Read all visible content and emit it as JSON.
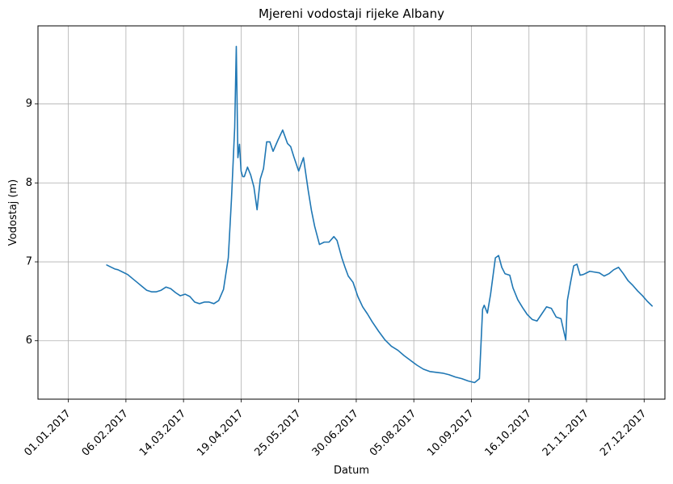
{
  "chart_data": {
    "type": "line",
    "title": "Mjereni vodostaji rijeke Albany",
    "xlabel": "Datum",
    "ylabel": "Vodostaj (m)",
    "x_ticks": [
      "01.01.2017",
      "06.02.2017",
      "14.03.2017",
      "19.04.2017",
      "25.05.2017",
      "30.06.2017",
      "05.08.2017",
      "10.09.2017",
      "16.10.2017",
      "21.11.2017",
      "27.12.2017"
    ],
    "y_ticks": [
      6,
      7,
      8,
      9
    ],
    "xlim": [
      "2016-12-13",
      "2018-01-09"
    ],
    "ylim": [
      5.26,
      9.99
    ],
    "grid": true,
    "line_color": "#1f77b4",
    "series": [
      {
        "x": [
          "2017-01-25",
          "2017-01-27",
          "2017-01-30",
          "2017-02-01",
          "2017-02-04",
          "2017-02-07",
          "2017-02-10",
          "2017-02-13",
          "2017-02-16",
          "2017-02-19",
          "2017-02-22",
          "2017-02-25",
          "2017-02-28",
          "2017-03-03",
          "2017-03-06",
          "2017-03-09",
          "2017-03-12",
          "2017-03-15",
          "2017-03-18",
          "2017-03-21",
          "2017-03-24",
          "2017-03-27",
          "2017-03-30",
          "2017-04-02",
          "2017-04-05",
          "2017-04-08",
          "2017-04-11",
          "2017-04-13",
          "2017-04-15",
          "2017-04-16",
          "2017-04-17",
          "2017-04-18",
          "2017-04-19",
          "2017-04-20",
          "2017-04-21",
          "2017-04-23",
          "2017-04-25",
          "2017-04-27",
          "2017-04-29",
          "2017-05-01",
          "2017-05-03",
          "2017-05-05",
          "2017-05-07",
          "2017-05-09",
          "2017-05-12",
          "2017-05-15",
          "2017-05-18",
          "2017-05-20",
          "2017-05-22",
          "2017-05-25",
          "2017-05-28",
          "2017-05-31",
          "2017-06-02",
          "2017-06-04",
          "2017-06-07",
          "2017-06-10",
          "2017-06-13",
          "2017-06-16",
          "2017-06-18",
          "2017-06-21",
          "2017-06-23",
          "2017-06-25",
          "2017-06-28",
          "2017-07-01",
          "2017-07-04",
          "2017-07-07",
          "2017-07-10",
          "2017-07-14",
          "2017-07-18",
          "2017-07-22",
          "2017-07-26",
          "2017-07-30",
          "2017-08-03",
          "2017-08-07",
          "2017-08-11",
          "2017-08-15",
          "2017-08-19",
          "2017-08-23",
          "2017-08-27",
          "2017-08-31",
          "2017-09-04",
          "2017-09-08",
          "2017-09-12",
          "2017-09-15",
          "2017-09-17",
          "2017-09-18",
          "2017-09-20",
          "2017-09-22",
          "2017-09-25",
          "2017-09-27",
          "2017-09-29",
          "2017-10-01",
          "2017-10-04",
          "2017-10-06",
          "2017-10-09",
          "2017-10-12",
          "2017-10-15",
          "2017-10-18",
          "2017-10-21",
          "2017-10-24",
          "2017-10-27",
          "2017-10-30",
          "2017-11-02",
          "2017-11-05",
          "2017-11-08",
          "2017-11-09",
          "2017-11-11",
          "2017-11-13",
          "2017-11-15",
          "2017-11-17",
          "2017-11-19",
          "2017-11-21",
          "2017-11-23",
          "2017-11-26",
          "2017-11-29",
          "2017-12-02",
          "2017-12-05",
          "2017-12-08",
          "2017-12-11",
          "2017-12-14",
          "2017-12-17",
          "2017-12-20",
          "2017-12-23",
          "2017-12-26",
          "2017-12-29",
          "2018-01-01"
        ],
        "values": [
          6.96,
          6.94,
          6.91,
          6.9,
          6.87,
          6.84,
          6.79,
          6.74,
          6.69,
          6.64,
          6.62,
          6.62,
          6.64,
          6.68,
          6.66,
          6.61,
          6.57,
          6.59,
          6.56,
          6.49,
          6.47,
          6.49,
          6.49,
          6.47,
          6.51,
          6.65,
          7.05,
          7.8,
          8.7,
          9.73,
          8.32,
          8.49,
          8.15,
          8.08,
          8.08,
          8.2,
          8.1,
          7.95,
          7.66,
          8.05,
          8.18,
          8.52,
          8.52,
          8.4,
          8.54,
          8.67,
          8.5,
          8.46,
          8.33,
          8.15,
          8.32,
          7.9,
          7.65,
          7.45,
          7.22,
          7.25,
          7.25,
          7.32,
          7.27,
          7.05,
          6.93,
          6.82,
          6.74,
          6.56,
          6.43,
          6.34,
          6.24,
          6.12,
          6.01,
          5.93,
          5.88,
          5.81,
          5.75,
          5.69,
          5.64,
          5.61,
          5.6,
          5.59,
          5.57,
          5.54,
          5.52,
          5.49,
          5.47,
          5.52,
          6.4,
          6.45,
          6.35,
          6.59,
          7.05,
          7.08,
          6.93,
          6.85,
          6.83,
          6.67,
          6.52,
          6.42,
          6.33,
          6.27,
          6.25,
          6.34,
          6.43,
          6.41,
          6.3,
          6.28,
          6.01,
          6.51,
          6.74,
          6.95,
          6.97,
          6.83,
          6.84,
          6.86,
          6.88,
          6.87,
          6.86,
          6.82,
          6.85,
          6.9,
          6.93,
          6.85,
          6.76,
          6.7,
          6.63,
          6.57,
          6.5,
          6.44
        ]
      }
    ]
  }
}
